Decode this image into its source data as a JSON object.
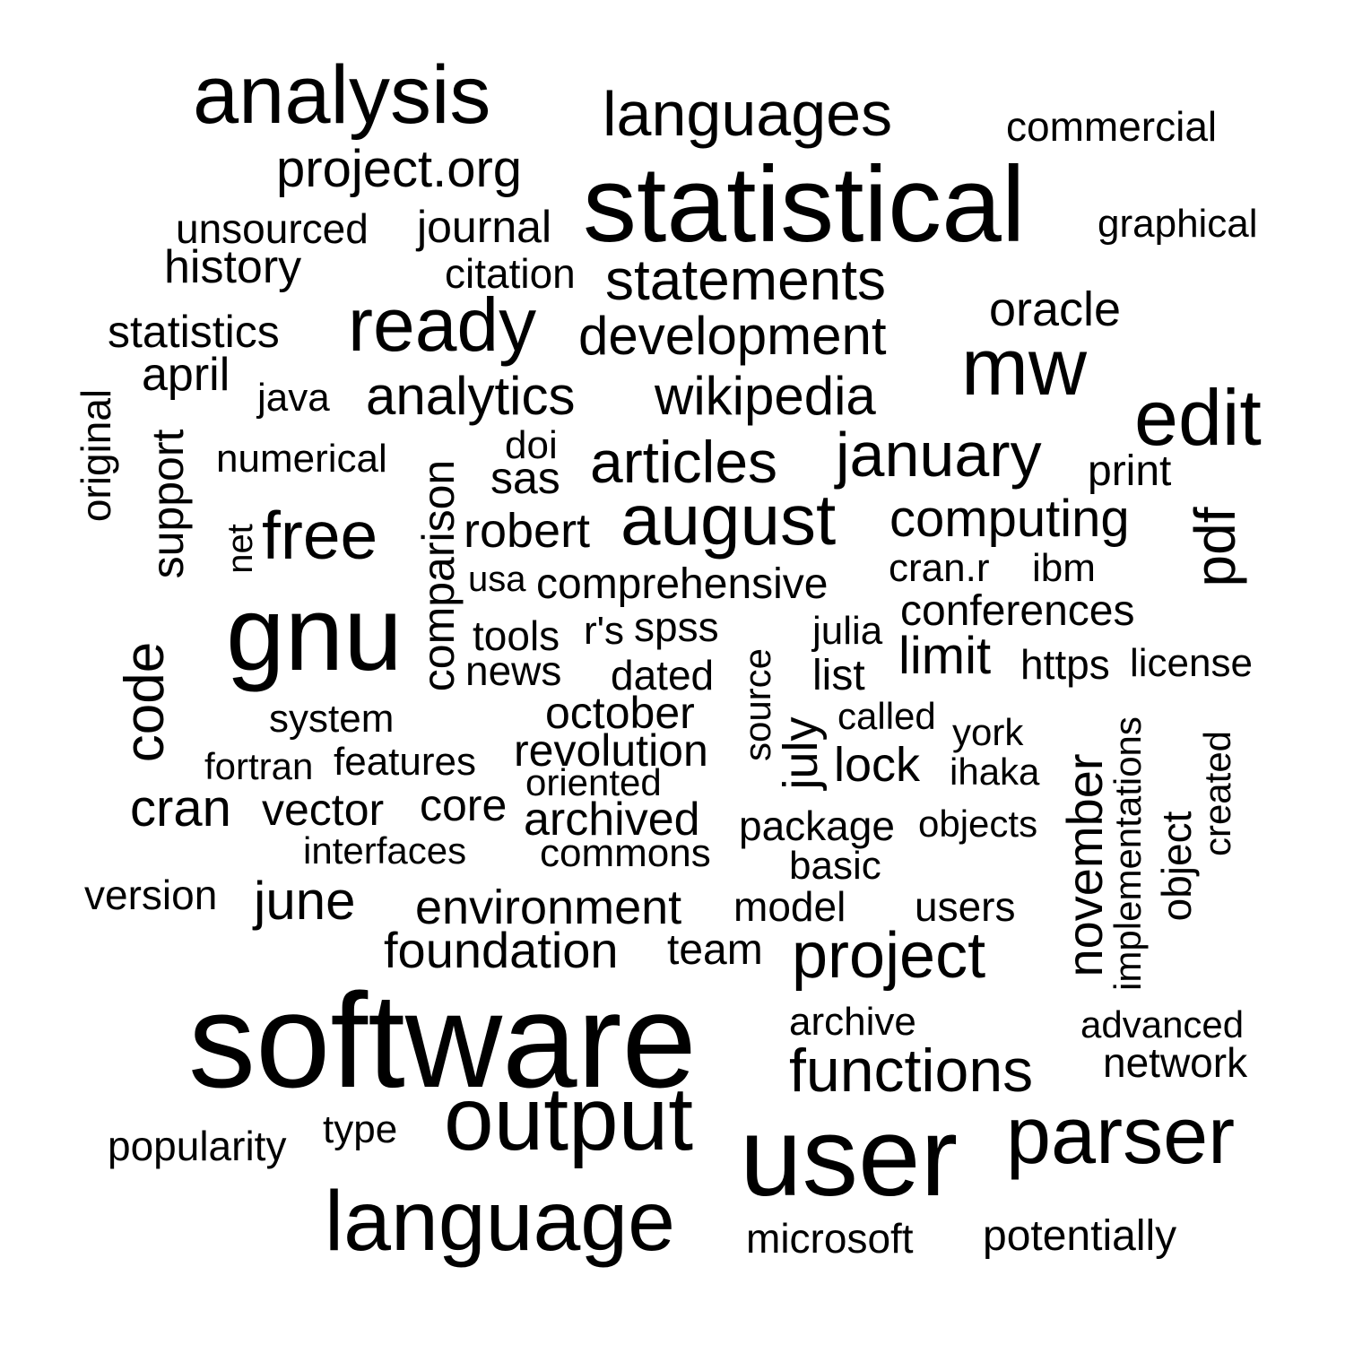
{
  "words": [
    {
      "text": "software"
    },
    {
      "text": "statistical"
    },
    {
      "text": "user"
    },
    {
      "text": "analysis"
    },
    {
      "text": "gnu"
    },
    {
      "text": "output"
    },
    {
      "text": "language"
    },
    {
      "text": "parser"
    },
    {
      "text": "mw"
    },
    {
      "text": "edit"
    },
    {
      "text": "august"
    },
    {
      "text": "ready"
    },
    {
      "text": "languages"
    },
    {
      "text": "project"
    },
    {
      "text": "functions"
    },
    {
      "text": "free"
    },
    {
      "text": "january"
    },
    {
      "text": "articles"
    },
    {
      "text": "statements"
    },
    {
      "text": "development"
    },
    {
      "text": "analytics"
    },
    {
      "text": "wikipedia"
    },
    {
      "text": "project.org"
    },
    {
      "text": "computing"
    },
    {
      "text": "code"
    },
    {
      "text": "cran"
    },
    {
      "text": "pdf"
    },
    {
      "text": "november"
    },
    {
      "text": "comparison"
    },
    {
      "text": "foundation"
    },
    {
      "text": "environment"
    },
    {
      "text": "june"
    },
    {
      "text": "oracle"
    },
    {
      "text": "journal"
    },
    {
      "text": "unsourced"
    },
    {
      "text": "history"
    },
    {
      "text": "statistics"
    },
    {
      "text": "april"
    },
    {
      "text": "support"
    },
    {
      "text": "limit"
    },
    {
      "text": "robert"
    },
    {
      "text": "comprehensive"
    },
    {
      "text": "conferences"
    },
    {
      "text": "revolution"
    },
    {
      "text": "archived"
    },
    {
      "text": "october"
    },
    {
      "text": "vector"
    },
    {
      "text": "core"
    },
    {
      "text": "lock"
    },
    {
      "text": "july"
    },
    {
      "text": "commercial"
    },
    {
      "text": "graphical"
    },
    {
      "text": "citation"
    },
    {
      "text": "original"
    },
    {
      "text": "numerical"
    },
    {
      "text": "java"
    },
    {
      "text": "doi"
    },
    {
      "text": "sas"
    },
    {
      "text": "print"
    },
    {
      "text": "cran.r"
    },
    {
      "text": "ibm"
    },
    {
      "text": "net"
    },
    {
      "text": "usa"
    },
    {
      "text": "tools"
    },
    {
      "text": "r's"
    },
    {
      "text": "spss"
    },
    {
      "text": "julia"
    },
    {
      "text": "news"
    },
    {
      "text": "dated"
    },
    {
      "text": "list"
    },
    {
      "text": "https"
    },
    {
      "text": "license"
    },
    {
      "text": "system"
    },
    {
      "text": "called"
    },
    {
      "text": "york"
    },
    {
      "text": "source"
    },
    {
      "text": "fortran"
    },
    {
      "text": "features"
    },
    {
      "text": "oriented"
    },
    {
      "text": "ihaka"
    },
    {
      "text": "implementations"
    },
    {
      "text": "created"
    },
    {
      "text": "object"
    },
    {
      "text": "package"
    },
    {
      "text": "objects"
    },
    {
      "text": "interfaces"
    },
    {
      "text": "commons"
    },
    {
      "text": "basic"
    },
    {
      "text": "version"
    },
    {
      "text": "model"
    },
    {
      "text": "users"
    },
    {
      "text": "team"
    },
    {
      "text": "archive"
    },
    {
      "text": "advanced"
    },
    {
      "text": "network"
    },
    {
      "text": "popularity"
    },
    {
      "text": "type"
    },
    {
      "text": "microsoft"
    },
    {
      "text": "potentially"
    }
  ]
}
